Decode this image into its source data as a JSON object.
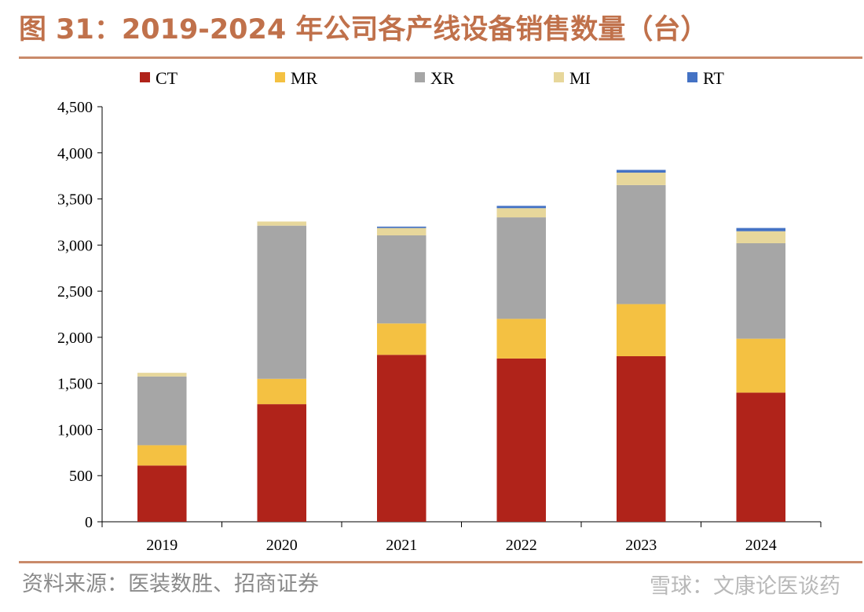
{
  "figure": {
    "title": "图 31：2019-2024 年公司各产线设备销售数量（台）",
    "source": "资料来源：医装数胜、招商证券",
    "watermark": "雪球：文康论医谈药"
  },
  "chart_data": {
    "type": "bar",
    "stacked": true,
    "categories": [
      "2019",
      "2020",
      "2021",
      "2022",
      "2023",
      "2024"
    ],
    "series": [
      {
        "name": "CT",
        "color": "#b0231a",
        "values": [
          610,
          1275,
          1810,
          1770,
          1795,
          1400
        ]
      },
      {
        "name": "MR",
        "color": "#f4c142",
        "values": [
          220,
          275,
          340,
          430,
          565,
          585
        ]
      },
      {
        "name": "XR",
        "color": "#a6a6a6",
        "values": [
          745,
          1660,
          955,
          1100,
          1290,
          1035
        ]
      },
      {
        "name": "MI",
        "color": "#e7d79b",
        "values": [
          40,
          45,
          80,
          100,
          135,
          130
        ]
      },
      {
        "name": "RT",
        "color": "#4472c4",
        "values": [
          0,
          0,
          15,
          25,
          30,
          35
        ]
      }
    ],
    "ylim": [
      0,
      4500
    ],
    "yticks": [
      0,
      500,
      1000,
      1500,
      2000,
      2500,
      3000,
      3500,
      4000,
      4500
    ],
    "ytick_labels": [
      "0",
      "500",
      "1,000",
      "1,500",
      "2,000",
      "2,500",
      "3,000",
      "3,500",
      "4,000",
      "4,500"
    ],
    "legend_position": "top",
    "grid": false
  }
}
